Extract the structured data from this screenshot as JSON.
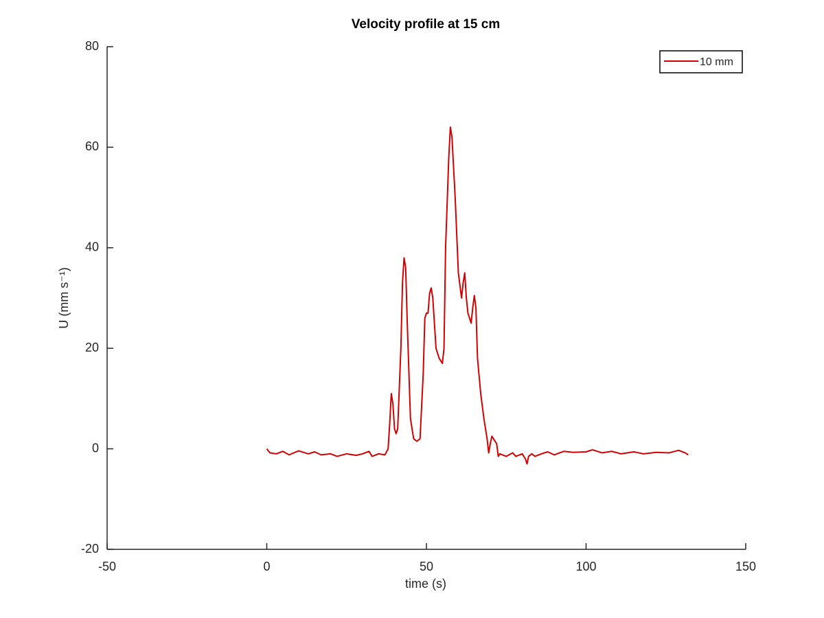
{
  "chart_data": {
    "type": "line",
    "title": "Velocity profile at 15 cm",
    "xlabel": "time (s)",
    "ylabel": "U (mm s⁻¹)",
    "x": [
      0,
      1,
      3,
      5,
      7,
      10,
      13,
      15,
      17,
      20,
      22,
      25,
      28,
      30,
      32,
      33,
      35,
      37,
      38,
      38.5,
      39,
      39.5,
      40,
      40.5,
      41,
      42,
      42.5,
      43,
      43.5,
      44,
      45,
      46,
      47,
      48,
      49,
      49.5,
      50,
      50.5,
      51,
      51.5,
      52,
      53,
      54,
      55,
      55.5,
      56,
      57,
      57.5,
      58,
      59,
      60,
      61,
      61.5,
      62,
      62.5,
      63,
      64,
      64.5,
      65,
      65.5,
      66,
      67,
      68,
      69,
      69.5,
      70,
      70.5,
      71,
      72,
      72.5,
      73,
      75,
      77,
      78,
      80,
      81,
      81.5,
      82,
      83,
      84,
      86,
      88,
      90,
      93,
      96,
      100,
      102,
      105,
      108,
      111,
      115,
      118,
      122,
      126,
      129,
      131,
      132
    ],
    "series": [
      {
        "name": "10 mm",
        "color": "#d40000",
        "values": [
          0,
          -0.8,
          -1,
          -0.5,
          -1.2,
          -0.4,
          -1,
          -0.6,
          -1.2,
          -1,
          -1.5,
          -1,
          -1.3,
          -1,
          -0.5,
          -1.5,
          -1,
          -1.2,
          0,
          5,
          11,
          9,
          4,
          3,
          4,
          20,
          33,
          38,
          36,
          25,
          6,
          2,
          1.5,
          2,
          15,
          26,
          27,
          27,
          31,
          32,
          30,
          20,
          18,
          17,
          20,
          40,
          58,
          64,
          62,
          50,
          35,
          30,
          33,
          35,
          30,
          27,
          25,
          28,
          30.5,
          28,
          18,
          11,
          6,
          2,
          -0.8,
          1,
          2.5,
          2,
          1,
          -1.5,
          -1,
          -1.5,
          -0.8,
          -1.5,
          -1,
          -2,
          -3,
          -1.5,
          -1,
          -1.5,
          -1,
          -0.6,
          -1.2,
          -0.5,
          -0.7,
          -0.6,
          -0.2,
          -0.8,
          -0.5,
          -1,
          -0.6,
          -1,
          -0.7,
          -0.8,
          -0.3,
          -0.8,
          -1.2
        ]
      }
    ],
    "xlim": [
      -50,
      150
    ],
    "xticks": [
      -50,
      0,
      50,
      100,
      150
    ],
    "ylim": [
      -20,
      80
    ],
    "yticks": [
      -20,
      0,
      20,
      40,
      60,
      80
    ],
    "legend": "upper right"
  }
}
